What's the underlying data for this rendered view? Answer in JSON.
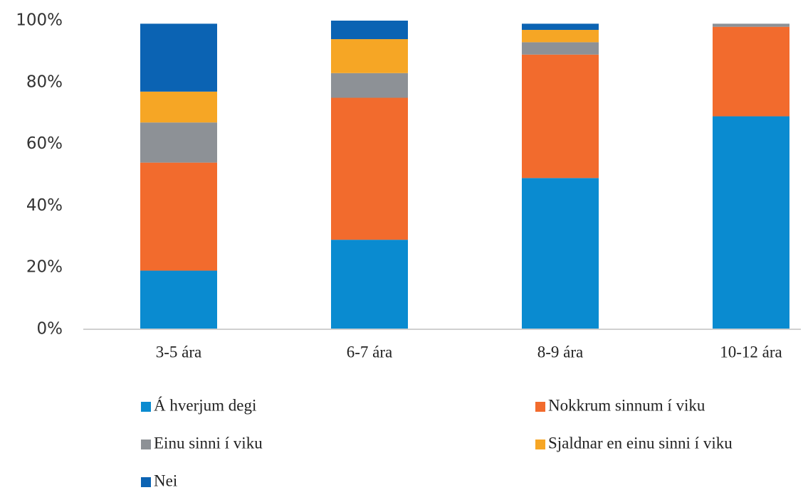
{
  "chart_data": {
    "type": "stacked_bar",
    "categories": [
      "3-5 ára",
      "6-7 ára",
      "8-9 ára",
      "10-12 ára"
    ],
    "series": [
      {
        "name": "Á hverjum degi",
        "color": "#0a8bd0",
        "values": [
          19,
          29,
          49,
          69
        ]
      },
      {
        "name": "Nokkrum sinnum í viku",
        "color": "#f26b2d",
        "values": [
          35,
          46,
          40,
          29
        ]
      },
      {
        "name": "Einu sinni í viku",
        "color": "#8d9196",
        "values": [
          13,
          8,
          4,
          1
        ]
      },
      {
        "name": "Sjaldnar en einu sinni í viku",
        "color": "#f6a625",
        "values": [
          10,
          11,
          4,
          0
        ]
      },
      {
        "name": "Nei",
        "color": "#0b63b3",
        "values": [
          22,
          6,
          2,
          0
        ]
      }
    ],
    "ylim": [
      0,
      100
    ],
    "yticks": [
      {
        "value": 0,
        "label": "0%"
      },
      {
        "value": 20,
        "label": "20%"
      },
      {
        "value": 40,
        "label": "40%"
      },
      {
        "value": 60,
        "label": "60%"
      },
      {
        "value": 80,
        "label": "80%"
      },
      {
        "value": 100,
        "label": "100%"
      }
    ],
    "grid": false,
    "legend": "bottom"
  }
}
